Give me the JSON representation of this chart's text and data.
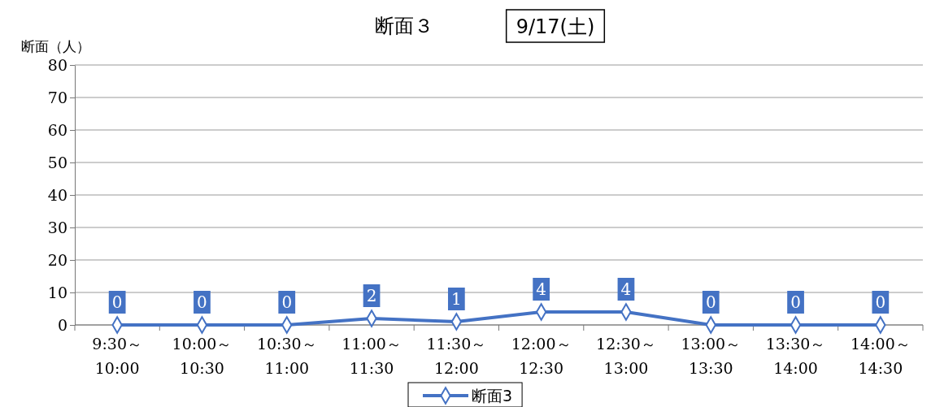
{
  "chart_data": {
    "type": "line",
    "title": "断面３",
    "annotations": [
      "9/17(土)"
    ],
    "ylabel": "断面（人）",
    "categories": [
      "9:30～\n10:00",
      "10:00～\n10:30",
      "10:30～\n11:00",
      "11:00～\n11:30",
      "11:30～\n12:00",
      "12:00～\n12:30",
      "12:30～\n13:00",
      "13:00～\n13:30",
      "13:30～\n14:00",
      "14:00～\n14:30"
    ],
    "series": [
      {
        "name": "断面3",
        "color": "#4472c4",
        "values": [
          0,
          0,
          0,
          2,
          1,
          4,
          4,
          0,
          0,
          0
        ]
      }
    ],
    "ylim": [
      0,
      80
    ],
    "yticks": [
      0,
      10,
      20,
      30,
      40,
      50,
      60,
      70,
      80
    ],
    "grid": "y",
    "legend": "bottom",
    "marker": "diamond",
    "line_style": "solid",
    "data_labels": true
  }
}
